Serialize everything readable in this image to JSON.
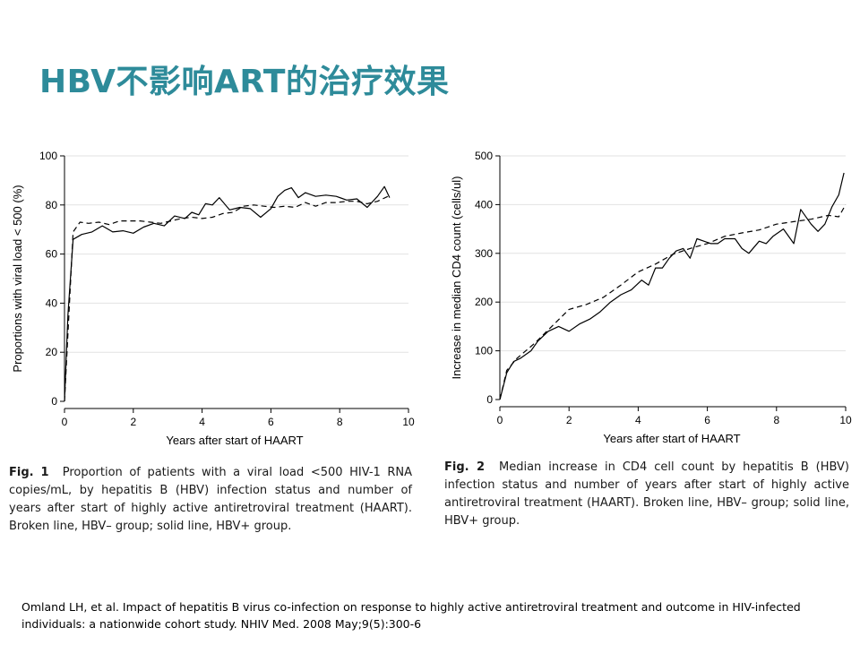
{
  "slide": {
    "title": "HBV不影响ART的治疗效果",
    "reference": "Omland LH, et al. Impact of hepatitis B virus co-infection on response to highly active antiretroviral treatment and outcome in HIV-infected individuals: a nationwide cohort study. NHIV Med. 2008 May;9(5):300-6"
  },
  "captions": [
    {
      "fig": "Fig. 1",
      "text": "Proportion of patients with a viral load <500 HIV-1 RNA copies/mL, by hepatitis B (HBV) infection status and number of years after start of highly active antiretroviral treatment (HAART). Broken line, HBV– group; solid line, HBV+ group."
    },
    {
      "fig": "Fig. 2",
      "text": "Median increase in CD4 cell count by hepatitis B (HBV) infection status and number of years after start of highly active antiretroviral treatment (HAART). Broken line, HBV– group; solid line, HBV+ group."
    }
  ],
  "chart_data": [
    {
      "type": "line",
      "xlabel": "Years after start of HAART",
      "ylabel": "Proportions with viral load < 500 (%)",
      "xlim": [
        0,
        10
      ],
      "ylim": [
        0,
        100
      ],
      "xticks": [
        0,
        2,
        4,
        6,
        8,
        10
      ],
      "yticks": [
        0,
        20,
        40,
        60,
        80,
        100
      ],
      "grid": "horizontal",
      "series": [
        {
          "style": "dashed",
          "x": [
            0,
            0.25,
            0.45,
            0.7,
            1.0,
            1.3,
            1.6,
            1.9,
            2.2,
            2.5,
            2.8,
            3.1,
            3.4,
            3.7,
            4.0,
            4.3,
            4.6,
            4.9,
            5.2,
            5.5,
            5.8,
            6.1,
            6.4,
            6.7,
            7.0,
            7.3,
            7.6,
            7.9,
            8.2,
            8.5,
            8.8,
            9.1,
            9.4
          ],
          "y": [
            0,
            69,
            73,
            72.5,
            73,
            72,
            73.5,
            73.5,
            73.5,
            73,
            72.5,
            73.5,
            74.5,
            75,
            74.5,
            75,
            76.5,
            77,
            79.5,
            80,
            79.5,
            79,
            79.5,
            79,
            81,
            79.5,
            81,
            81,
            81.5,
            81.5,
            80.5,
            81.5,
            83.5
          ]
        },
        {
          "style": "solid",
          "x": [
            0,
            0.1,
            0.25,
            0.5,
            0.8,
            1.1,
            1.4,
            1.7,
            2.0,
            2.3,
            2.6,
            2.9,
            3.2,
            3.5,
            3.7,
            3.9,
            4.1,
            4.3,
            4.5,
            4.8,
            5.1,
            5.4,
            5.7,
            6.0,
            6.2,
            6.4,
            6.6,
            6.8,
            7.0,
            7.3,
            7.6,
            7.9,
            8.2,
            8.5,
            8.8,
            9.1,
            9.3,
            9.45
          ],
          "y": [
            0,
            35,
            66,
            68,
            69,
            71.5,
            69,
            69.5,
            68.5,
            71,
            72.5,
            71.5,
            75.5,
            74.5,
            77,
            76,
            80.5,
            80,
            83,
            78,
            79,
            78.5,
            75,
            78.5,
            83.5,
            86,
            87,
            83,
            85,
            83.5,
            84,
            83.5,
            82,
            82.5,
            79,
            83.5,
            87.5,
            83
          ]
        }
      ]
    },
    {
      "type": "line",
      "xlabel": "Years after start of HAART",
      "ylabel": "Increase in median CD4 count (cells/ul)",
      "xlim": [
        0,
        10
      ],
      "ylim": [
        0,
        500
      ],
      "xticks": [
        0,
        2,
        4,
        6,
        8,
        10
      ],
      "yticks": [
        0,
        100,
        200,
        300,
        400,
        500
      ],
      "grid": "horizontal",
      "series": [
        {
          "style": "dashed",
          "x": [
            0,
            0.2,
            0.5,
            1.0,
            1.5,
            2.0,
            2.5,
            3.0,
            3.5,
            4.0,
            4.5,
            5.0,
            5.5,
            6.0,
            6.5,
            7.0,
            7.5,
            8.0,
            8.5,
            9.0,
            9.5,
            9.8,
            10.0
          ],
          "y": [
            0,
            60,
            85,
            115,
            150,
            185,
            195,
            210,
            235,
            262,
            278,
            298,
            310,
            320,
            335,
            342,
            348,
            360,
            365,
            370,
            378,
            375,
            400
          ]
        },
        {
          "style": "solid",
          "x": [
            0,
            0.2,
            0.4,
            0.6,
            0.9,
            1.1,
            1.4,
            1.7,
            2.0,
            2.3,
            2.6,
            2.9,
            3.2,
            3.5,
            3.8,
            4.1,
            4.3,
            4.5,
            4.7,
            4.9,
            5.1,
            5.3,
            5.5,
            5.7,
            5.9,
            6.1,
            6.3,
            6.5,
            6.8,
            7.0,
            7.2,
            7.5,
            7.7,
            7.9,
            8.2,
            8.5,
            8.7,
            8.8,
            9.0,
            9.2,
            9.4,
            9.6,
            9.8,
            9.95
          ],
          "y": [
            0,
            55,
            78,
            85,
            100,
            120,
            140,
            150,
            140,
            155,
            165,
            180,
            200,
            215,
            225,
            245,
            235,
            270,
            270,
            290,
            305,
            310,
            290,
            330,
            325,
            320,
            320,
            330,
            330,
            310,
            300,
            325,
            320,
            335,
            350,
            320,
            390,
            380,
            360,
            345,
            360,
            395,
            420,
            465
          ]
        }
      ]
    }
  ]
}
